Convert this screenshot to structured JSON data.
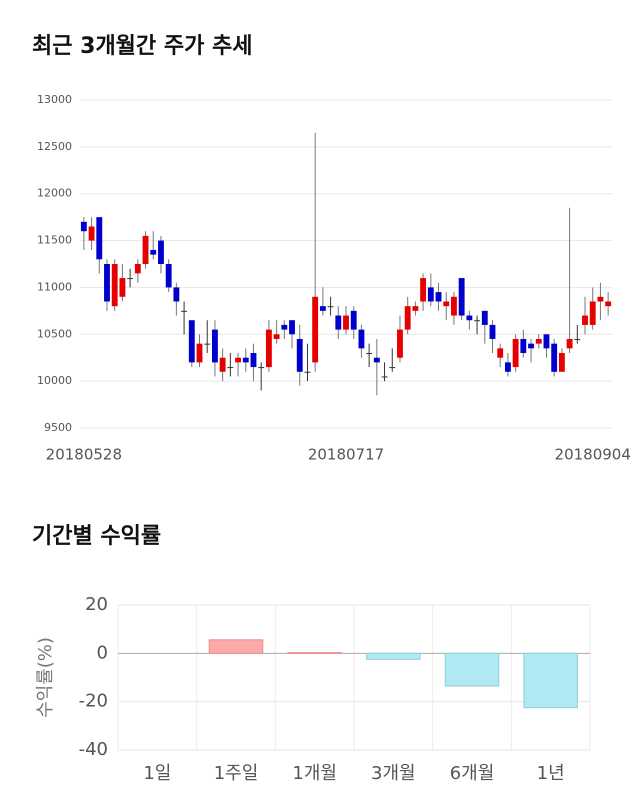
{
  "chart_data": [
    {
      "type": "candlestick",
      "title": "최근 3개월간 주가 추세",
      "categories": [
        "20180528",
        null,
        null,
        null,
        null,
        null,
        null,
        null,
        null,
        null,
        null,
        null,
        null,
        null,
        null,
        null,
        null,
        null,
        null,
        null,
        null,
        null,
        null,
        null,
        null,
        null,
        null,
        null,
        null,
        null,
        null,
        null,
        null,
        null,
        "20180717",
        null,
        null,
        null,
        null,
        null,
        null,
        null,
        null,
        null,
        null,
        null,
        null,
        null,
        null,
        null,
        null,
        null,
        null,
        null,
        null,
        null,
        null,
        null,
        null,
        null,
        null,
        null,
        null,
        null,
        null,
        null,
        "20180904",
        null,
        null
      ],
      "open": [
        11700,
        11500,
        11750,
        11250,
        10800,
        10900,
        11100,
        11150,
        11250,
        11400,
        11500,
        11250,
        11000,
        10750,
        10650,
        10200,
        10400,
        10550,
        10100,
        10150,
        10200,
        10250,
        10300,
        10150,
        10150,
        10450,
        10600,
        10650,
        10450,
        10100,
        10200,
        10800,
        10800,
        10700,
        10550,
        10750,
        10550,
        10300,
        10250,
        10050,
        10150,
        10250,
        10550,
        10750,
        10850,
        11000,
        10950,
        10800,
        10700,
        11100,
        10700,
        10650,
        10750,
        10600,
        10250,
        10200,
        10150,
        10450,
        10400,
        10400,
        10500,
        10400,
        10100,
        10350,
        10450,
        10600,
        10600,
        10850,
        10800
      ],
      "high": [
        11750,
        11750,
        11750,
        11300,
        11300,
        11250,
        11200,
        11300,
        11600,
        11600,
        11550,
        11300,
        11050,
        10850,
        10650,
        10500,
        10650,
        10650,
        10350,
        10300,
        10300,
        10350,
        10400,
        10200,
        10650,
        10650,
        10650,
        10650,
        10600,
        10400,
        12650,
        11000,
        10900,
        10800,
        10800,
        10800,
        10600,
        10400,
        10450,
        10200,
        10350,
        10700,
        10900,
        10850,
        11150,
        11150,
        11050,
        10950,
        10950,
        11100,
        10750,
        10700,
        10750,
        10650,
        10400,
        10300,
        10500,
        10550,
        10450,
        10500,
        10500,
        10450,
        10350,
        11850,
        10600,
        10900,
        11000,
        11050,
        10950
      ],
      "low": [
        11400,
        11400,
        11150,
        10750,
        10750,
        10850,
        11000,
        11050,
        11200,
        11300,
        11150,
        10950,
        10700,
        10500,
        10150,
        10150,
        10300,
        10050,
        10000,
        10050,
        10050,
        10100,
        10000,
        9900,
        10100,
        10400,
        10450,
        10350,
        9950,
        10000,
        10100,
        10700,
        10700,
        10450,
        10500,
        10450,
        10250,
        10150,
        9850,
        10000,
        10100,
        10200,
        10500,
        10700,
        10750,
        10800,
        10750,
        10650,
        10600,
        10650,
        10550,
        10500,
        10400,
        10300,
        10150,
        10050,
        10100,
        10250,
        10200,
        10350,
        10250,
        10050,
        10100,
        10300,
        10400,
        10500,
        10550,
        10650,
        10700
      ],
      "close": [
        11600,
        11650,
        11300,
        10850,
        11250,
        11100,
        11100,
        11250,
        11550,
        11350,
        11250,
        11000,
        10850,
        10750,
        10200,
        10400,
        10400,
        10200,
        10250,
        10150,
        10250,
        10200,
        10150,
        10150,
        10550,
        10500,
        10550,
        10500,
        10100,
        10100,
        10900,
        10750,
        10800,
        10550,
        10700,
        10550,
        10350,
        10300,
        10200,
        10050,
        10150,
        10550,
        10800,
        10800,
        11100,
        10850,
        10850,
        10850,
        10900,
        10700,
        10650,
        10650,
        10600,
        10450,
        10350,
        10100,
        10450,
        10300,
        10350,
        10450,
        10350,
        10100,
        10300,
        10450,
        10450,
        10700,
        10850,
        10900,
        10850
      ],
      "up_color": "#e60000",
      "down_color": "#0000cc",
      "ylim": [
        9500,
        13000
      ],
      "yticks": [
        9500,
        10000,
        10500,
        11000,
        11500,
        12000,
        12500,
        13000
      ],
      "grid": true
    },
    {
      "type": "bar",
      "title": "기간별 수익률",
      "ylabel": "수익률(%)",
      "categories": [
        "1일",
        "1주일",
        "1개월",
        "3개월",
        "6개월",
        "1년"
      ],
      "values": [
        0,
        5.6,
        0.3,
        -2.5,
        -13.5,
        -22.5
      ],
      "positive_color": "#ffaaaa",
      "negative_color": "#b0e8f4",
      "ylim": [
        -40,
        20
      ],
      "yticks": [
        -40,
        -20,
        0,
        20
      ],
      "grid": true
    }
  ]
}
